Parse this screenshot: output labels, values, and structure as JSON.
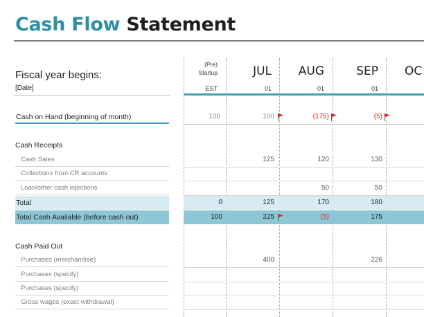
{
  "title": {
    "part1": "Cash Flow",
    "part2": "Statement"
  },
  "header": {
    "fiscal_year_label": "Fiscal year begins:",
    "date_label": "[Date]",
    "columns": [
      {
        "top": "(Pre)",
        "top2": "Startup",
        "sub": "EST"
      },
      {
        "month": "JUL",
        "sub": "01"
      },
      {
        "month": "AUG",
        "sub": "01"
      },
      {
        "month": "SEP",
        "sub": "01"
      },
      {
        "month": "OC",
        "sub": ""
      }
    ]
  },
  "cash_on_hand": {
    "label": "Cash on Hand (beginning of month)",
    "values": [
      "100",
      "100",
      "(175)",
      "(5)"
    ]
  },
  "cash_receipts": {
    "heading": "Cash Receipts",
    "rows": [
      {
        "label": "Cash Sales",
        "values": [
          "",
          "125",
          "120",
          "130"
        ]
      },
      {
        "label": "Collections from CR accounts",
        "values": [
          "",
          "",
          "",
          ""
        ]
      },
      {
        "label": "Loan/other cash injections",
        "values": [
          "",
          "",
          "50",
          "50"
        ]
      }
    ],
    "total": {
      "label": "Total",
      "values": [
        "0",
        "125",
        "170",
        "180"
      ]
    },
    "available": {
      "label": "Total Cash Available (before cash out)",
      "values": [
        "100",
        "225",
        "(5)",
        "175"
      ]
    }
  },
  "cash_paid_out": {
    "heading": "Cash Paid Out",
    "rows": [
      {
        "label": "Purchases (merchandise)",
        "values": [
          "",
          "400",
          "",
          "226"
        ]
      },
      {
        "label": "Purchases (specify)",
        "values": [
          "",
          "",
          "",
          ""
        ]
      },
      {
        "label": "Purchases (specify)",
        "values": [
          "",
          "",
          "",
          ""
        ]
      },
      {
        "label": "Gross wages (exact withdrawal)",
        "values": [
          "",
          "",
          "",
          ""
        ]
      }
    ]
  },
  "colors": {
    "accent": "#2f8fa5",
    "total_fill": "#d6ecf2",
    "available_fill": "#8dc7d6",
    "negative": "#e02020",
    "flag": "#d9262c"
  }
}
